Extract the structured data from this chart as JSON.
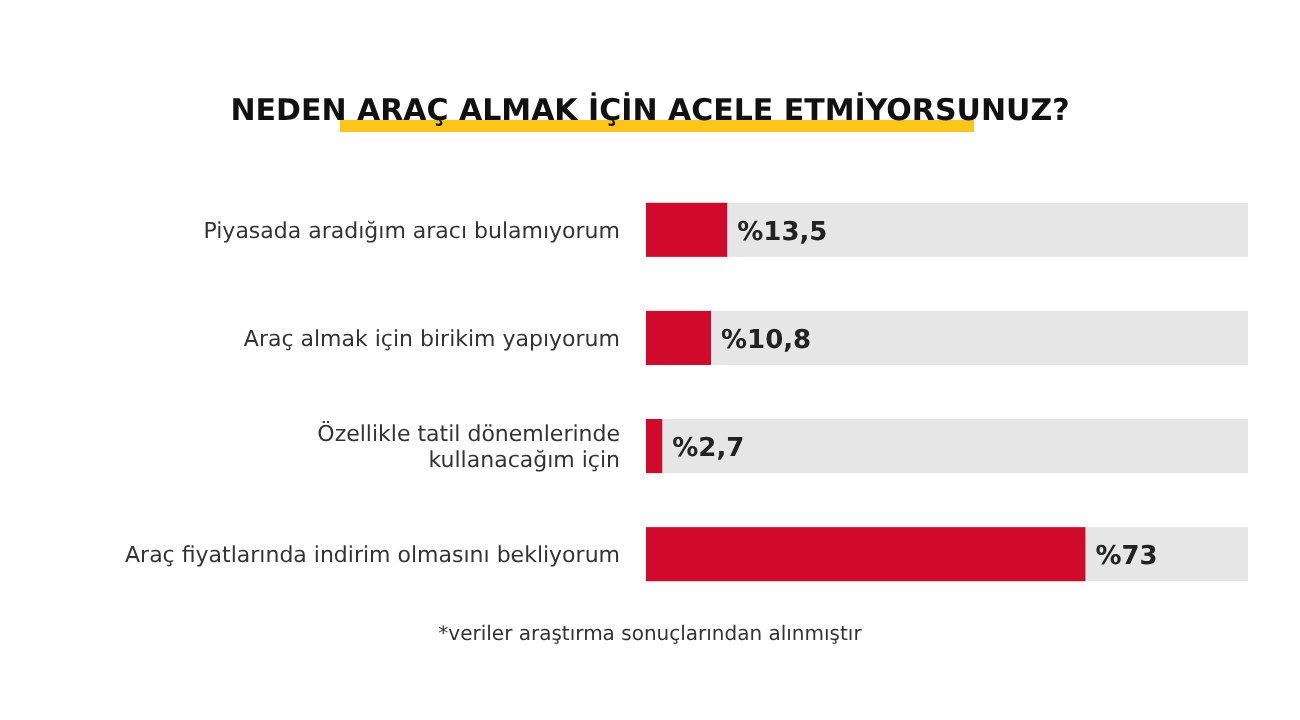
{
  "chart_data": {
    "type": "bar",
    "orientation": "horizontal",
    "title": "NEDEN ARAÇ ALMAK İÇİN ACELE ETMİYORSUNUZ?",
    "categories": [
      "Piyasada aradığım aracı bulamıyorum",
      "Araç almak için birikim yapıyorum",
      "Özellikle tatil dönemlerinde\nkullanacağım için",
      "Araç fiyatlarında indirim olmasını bekliyorum"
    ],
    "values": [
      13.5,
      10.8,
      2.7,
      73
    ],
    "value_labels": [
      "%13,5",
      "%10,8",
      "%2,7",
      "%73"
    ],
    "color": "#d10a2c",
    "xlim": [
      0,
      100
    ],
    "annotations": [
      "*veriler araştırma sonuçlarından alınmıştır"
    ]
  }
}
